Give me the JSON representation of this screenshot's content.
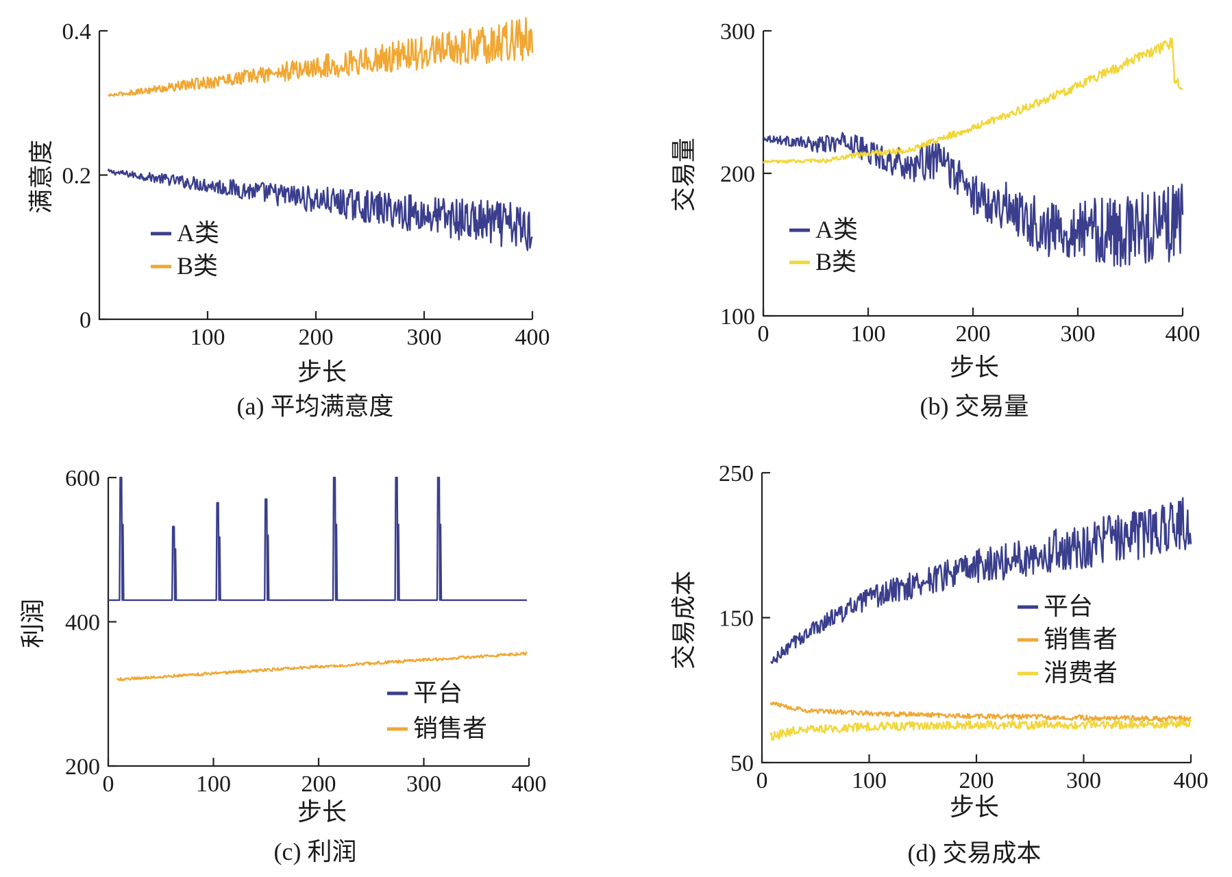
{
  "colors": {
    "blue": "#3a3e8c",
    "orange": "#f0a733",
    "yellow": "#f2d63a",
    "axis": "#222222"
  },
  "chart_data": [
    {
      "id": "a",
      "type": "line",
      "caption": "(a) 平均满意度",
      "xlabel": "步长",
      "ylabel": "满意度",
      "xlim": [
        0,
        400
      ],
      "ylim": [
        0,
        0.4
      ],
      "xticks": [
        "100",
        "200",
        "300",
        "400"
      ],
      "yticks": [
        "0",
        "0.2",
        "0.4"
      ],
      "legend_position": "center-left",
      "series": [
        {
          "name": "A类",
          "color": "blue",
          "start": 0.205,
          "end": 0.125,
          "noise_start": 0.003,
          "noise_end": 0.035
        },
        {
          "name": "B类",
          "color": "orange",
          "start": 0.31,
          "end": 0.39,
          "noise_start": 0.002,
          "noise_end": 0.03
        }
      ]
    },
    {
      "id": "b",
      "type": "line",
      "caption": "(b) 交易量",
      "xlabel": "步长",
      "ylabel": "交易量",
      "xlim": [
        0,
        400
      ],
      "ylim": [
        100,
        300
      ],
      "xticks": [
        "0",
        "100",
        "200",
        "300",
        "400"
      ],
      "yticks": [
        "100",
        "200",
        "300"
      ],
      "legend_position": "lower-left",
      "series": [
        {
          "name": "A类",
          "color": "blue",
          "points": [
            [
              0,
              225
            ],
            [
              50,
              220
            ],
            [
              80,
              222
            ],
            [
              110,
              212
            ],
            [
              140,
              205
            ],
            [
              170,
              210
            ],
            [
              200,
              185
            ],
            [
              240,
              175
            ],
            [
              270,
              160
            ],
            [
              300,
              162
            ],
            [
              340,
              158
            ],
            [
              380,
              165
            ],
            [
              400,
              165
            ]
          ],
          "noise_start": 2,
          "noise_end": 28
        },
        {
          "name": "B类",
          "color": "yellow",
          "points": [
            [
              0,
              208
            ],
            [
              60,
              209
            ],
            [
              100,
              214
            ],
            [
              140,
              216
            ],
            [
              160,
              222
            ],
            [
              200,
              232
            ],
            [
              240,
              243
            ],
            [
              280,
              255
            ],
            [
              320,
              268
            ],
            [
              360,
              282
            ],
            [
              385,
              290
            ],
            [
              390,
              292
            ],
            [
              392,
              265
            ],
            [
              400,
              260
            ]
          ],
          "noise_start": 1,
          "noise_end": 4
        }
      ]
    },
    {
      "id": "c",
      "type": "line",
      "caption": "(c) 利润",
      "xlabel": "步长",
      "ylabel": "利润",
      "xlim": [
        0,
        400
      ],
      "ylim": [
        200,
        600
      ],
      "xticks": [
        "0",
        "100",
        "200",
        "300",
        "400"
      ],
      "yticks": [
        "200",
        "400",
        "600"
      ],
      "legend_position": "lower-right",
      "series": [
        {
          "name": "平台",
          "color": "blue",
          "baseline": 430,
          "spikes": [
            [
              12,
              600
            ],
            [
              62,
              532
            ],
            [
              104,
              565
            ],
            [
              150,
              570
            ],
            [
              215,
              600
            ],
            [
              274,
              600
            ],
            [
              314,
              600
            ]
          ],
          "x_end": 398
        },
        {
          "name": "销售者",
          "color": "orange",
          "start": 320,
          "end": 356,
          "noise_start": 2,
          "noise_end": 2,
          "x_end": 398
        }
      ]
    },
    {
      "id": "d",
      "type": "line",
      "caption": "(d) 交易成本",
      "xlabel": "步长",
      "ylabel": "交易成本",
      "xlim": [
        0,
        400
      ],
      "ylim": [
        50,
        250
      ],
      "xticks": [
        "0",
        "100",
        "200",
        "300",
        "400"
      ],
      "yticks": [
        "50",
        "150",
        "250"
      ],
      "legend_position": "center-right",
      "series": [
        {
          "name": "平台",
          "color": "blue",
          "points": [
            [
              8,
              118
            ],
            [
              30,
              133
            ],
            [
              60,
              148
            ],
            [
              100,
              163
            ],
            [
              150,
              175
            ],
            [
              200,
              185
            ],
            [
              250,
              193
            ],
            [
              300,
              200
            ],
            [
              350,
              208
            ],
            [
              400,
              216
            ]
          ],
          "noise_start": 4,
          "noise_end": 20
        },
        {
          "name": "销售者",
          "color": "orange",
          "points": [
            [
              8,
              91
            ],
            [
              40,
              86
            ],
            [
              100,
              84
            ],
            [
              200,
              82
            ],
            [
              300,
              81
            ],
            [
              400,
              80
            ]
          ],
          "noise_start": 1.5,
          "noise_end": 2
        },
        {
          "name": "消费者",
          "color": "yellow",
          "points": [
            [
              8,
              68
            ],
            [
              30,
              72
            ],
            [
              100,
              75
            ],
            [
              200,
              76
            ],
            [
              300,
              76
            ],
            [
              400,
              77
            ]
          ],
          "noise_start": 3,
          "noise_end": 3
        }
      ]
    }
  ]
}
